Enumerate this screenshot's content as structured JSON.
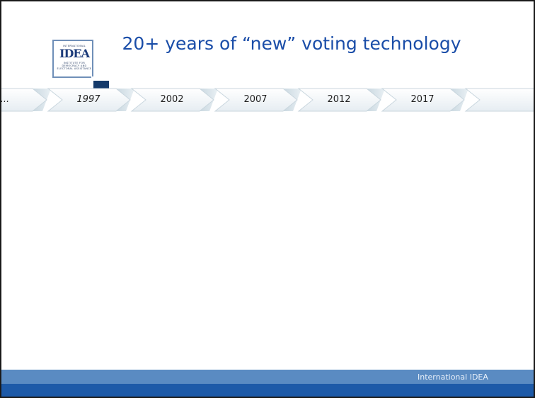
{
  "logo": {
    "top_text": "INTERNATIONAL",
    "word": "IDEA",
    "bottom_text": "INSTITUTE FOR DEMOCRACY AND ELECTORAL ASSISTANCE"
  },
  "title": "20+ years of “new” voting technology",
  "timeline": {
    "items": [
      "...",
      "1997",
      "2002",
      "2007",
      "2012",
      "2017",
      ""
    ]
  },
  "footer": {
    "text": "International IDEA"
  },
  "colors": {
    "title": "#1a4da8",
    "footer_light": "#5a8bc2",
    "footer_dark": "#1d5aa8",
    "logo_square": "#143a6a"
  }
}
